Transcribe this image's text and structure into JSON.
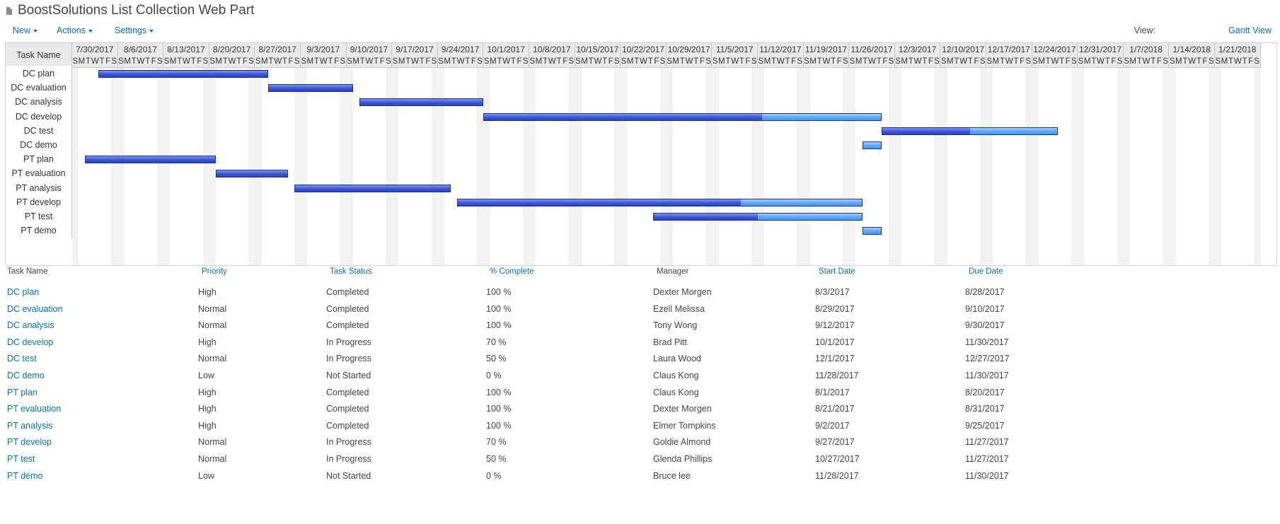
{
  "title": "BoostSolutions List Collection Web Part",
  "icons": {
    "title": "document-icon"
  },
  "colors": {
    "link": "#0072c6",
    "bar_done": "#3b56d6",
    "bar_remaining": "#5aa6ff"
  },
  "toolbar": {
    "new_label": "New",
    "actions_label": "Actions",
    "settings_label": "Settings",
    "view_label": "View:",
    "view_value": "Gantt View"
  },
  "gantt": {
    "task_header": "Task Name",
    "week_starts": [
      "7/30/2017",
      "8/6/2017",
      "8/13/2017",
      "8/20/2017",
      "8/27/2017",
      "9/3/2017",
      "9/10/2017",
      "9/17/2017",
      "9/24/2017",
      "10/1/2017",
      "10/8/2017",
      "10/15/2017",
      "10/22/2017",
      "10/29/2017",
      "11/5/2017",
      "11/12/2017",
      "11/19/2017",
      "11/26/2017",
      "12/3/2017",
      "12/10/2017",
      "12/17/2017",
      "12/24/2017",
      "12/31/2017",
      "1/7/2018",
      "1/14/2018",
      "1/21/2018"
    ],
    "day_letters": [
      "S",
      "M",
      "T",
      "W",
      "T",
      "F",
      "S"
    ],
    "tasks": [
      {
        "name": "DC plan",
        "start": "2017-08-03",
        "end": "2017-08-28",
        "complete": 100
      },
      {
        "name": "DC evaluation",
        "start": "2017-08-29",
        "end": "2017-09-10",
        "complete": 100
      },
      {
        "name": "DC analysis",
        "start": "2017-09-12",
        "end": "2017-09-30",
        "complete": 100
      },
      {
        "name": "DC develop",
        "start": "2017-10-01",
        "end": "2017-11-30",
        "complete": 70
      },
      {
        "name": "DC test",
        "start": "2017-12-01",
        "end": "2017-12-27",
        "complete": 50
      },
      {
        "name": "DC demo",
        "start": "2017-11-28",
        "end": "2017-11-30",
        "complete": 0
      },
      {
        "name": "PT plan",
        "start": "2017-08-01",
        "end": "2017-08-20",
        "complete": 100
      },
      {
        "name": "PT evaluation",
        "start": "2017-08-21",
        "end": "2017-08-31",
        "complete": 100
      },
      {
        "name": "PT analysis",
        "start": "2017-09-02",
        "end": "2017-09-25",
        "complete": 100
      },
      {
        "name": "PT develop",
        "start": "2017-09-27",
        "end": "2017-11-27",
        "complete": 70
      },
      {
        "name": "PT test",
        "start": "2017-10-27",
        "end": "2017-11-27",
        "complete": 50
      },
      {
        "name": "PT demo",
        "start": "2017-11-28",
        "end": "2017-11-30",
        "complete": 0
      }
    ]
  },
  "list": {
    "headers": [
      "Task Name",
      "Priority",
      "Task Status",
      "% Complete",
      "Manager",
      "Start Date",
      "Due Date"
    ],
    "rows": [
      [
        "DC plan",
        "High",
        "Completed",
        "100 %",
        "Dexter Morgen",
        "8/3/2017",
        "8/28/2017"
      ],
      [
        "DC evaluation",
        "Normal",
        "Completed",
        "100 %",
        "Ezell Melissa",
        "8/29/2017",
        "9/10/2017"
      ],
      [
        "DC analysis",
        "Normal",
        "Completed",
        "100 %",
        "Tony Wong",
        "9/12/2017",
        "9/30/2017"
      ],
      [
        "DC develop",
        "High",
        "In Progress",
        "70 %",
        "Brad Pitt",
        "10/1/2017",
        "11/30/2017"
      ],
      [
        "DC test",
        "Normal",
        "In Progress",
        "50 %",
        "Laura Wood",
        "12/1/2017",
        "12/27/2017"
      ],
      [
        "DC demo",
        "Low",
        "Not Started",
        "0 %",
        "Claus Kong",
        "11/28/2017",
        "11/30/2017"
      ],
      [
        "PT plan",
        "High",
        "Completed",
        "100 %",
        "Claus Kong",
        "8/1/2017",
        "8/20/2017"
      ],
      [
        "PT evaluation",
        "High",
        "Completed",
        "100 %",
        "Dexter Morgen",
        "8/21/2017",
        "8/31/2017"
      ],
      [
        "PT analysis",
        "High",
        "Completed",
        "100 %",
        "Elmer Tompkins",
        "9/2/2017",
        "9/25/2017"
      ],
      [
        "PT develop",
        "Normal",
        "In Progress",
        "70 %",
        "Goldie Almond",
        "9/27/2017",
        "11/27/2017"
      ],
      [
        "PT test",
        "Normal",
        "In Progress",
        "50 %",
        "Glenda Phillips",
        "10/27/2017",
        "11/27/2017"
      ],
      [
        "PT demo",
        "Low",
        "Not Started",
        "0 %",
        "Bruce lee",
        "11/28/2017",
        "11/30/2017"
      ]
    ]
  }
}
